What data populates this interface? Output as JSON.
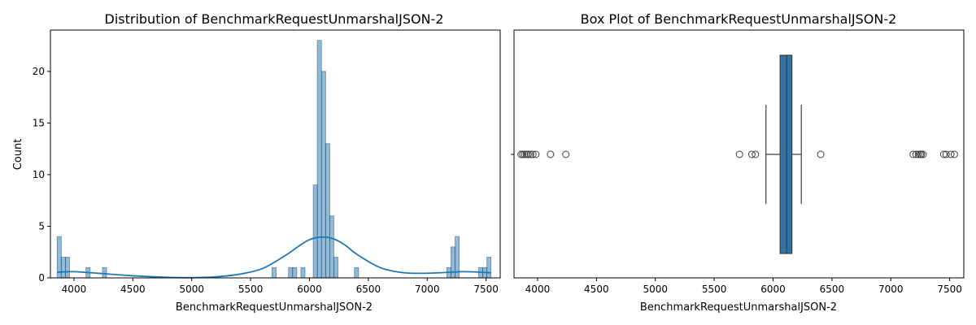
{
  "chart_data": [
    {
      "type": "bar",
      "subtype": "histogram-with-kde",
      "title": "Distribution of BenchmarkRequestUnmarshalJSON-2",
      "xlabel": "BenchmarkRequestUnmarshalJSON-2",
      "ylabel": "Count",
      "xlim": [
        3800,
        7620
      ],
      "ylim": [
        0,
        24
      ],
      "xticks": [
        4000,
        4500,
        5000,
        5500,
        6000,
        6500,
        7000,
        7500
      ],
      "yticks": [
        0,
        5,
        10,
        15,
        20
      ],
      "bar_color": "#1f77b4",
      "bins": [
        {
          "x0": 3857,
          "x1": 3892,
          "count": 4
        },
        {
          "x0": 3892,
          "x1": 3927,
          "count": 2
        },
        {
          "x0": 3927,
          "x1": 3962,
          "count": 2
        },
        {
          "x0": 4102,
          "x1": 4137,
          "count": 1
        },
        {
          "x0": 4242,
          "x1": 4277,
          "count": 1
        },
        {
          "x0": 5682,
          "x1": 5717,
          "count": 1
        },
        {
          "x0": 5822,
          "x1": 5857,
          "count": 1
        },
        {
          "x0": 5857,
          "x1": 5892,
          "count": 1
        },
        {
          "x0": 5927,
          "x1": 5962,
          "count": 1
        },
        {
          "x0": 6032,
          "x1": 6067,
          "count": 9
        },
        {
          "x0": 6067,
          "x1": 6102,
          "count": 23
        },
        {
          "x0": 6102,
          "x1": 6137,
          "count": 20
        },
        {
          "x0": 6137,
          "x1": 6172,
          "count": 13
        },
        {
          "x0": 6172,
          "x1": 6207,
          "count": 6
        },
        {
          "x0": 6207,
          "x1": 6242,
          "count": 2
        },
        {
          "x0": 6382,
          "x1": 6417,
          "count": 1
        },
        {
          "x0": 7167,
          "x1": 7202,
          "count": 1
        },
        {
          "x0": 7202,
          "x1": 7237,
          "count": 3
        },
        {
          "x0": 7237,
          "x1": 7272,
          "count": 4
        },
        {
          "x0": 7437,
          "x1": 7472,
          "count": 1
        },
        {
          "x0": 7472,
          "x1": 7507,
          "count": 1
        },
        {
          "x0": 7507,
          "x1": 7542,
          "count": 2
        }
      ],
      "kde": {
        "x": [
          3860,
          4000,
          4200,
          4500,
          4800,
          5000,
          5200,
          5400,
          5600,
          5800,
          5900,
          6000,
          6100,
          6200,
          6300,
          6400,
          6600,
          6800,
          7000,
          7200,
          7300,
          7400,
          7540
        ],
        "y": [
          0.55,
          0.6,
          0.45,
          0.2,
          0.05,
          0.02,
          0.1,
          0.35,
          0.9,
          2.2,
          3.0,
          3.7,
          3.95,
          3.8,
          3.2,
          2.3,
          1.0,
          0.5,
          0.45,
          0.55,
          0.6,
          0.58,
          0.5
        ]
      }
    },
    {
      "type": "box",
      "title": "Box Plot of BenchmarkRequestUnmarshalJSON-2",
      "xlabel": "BenchmarkRequestUnmarshalJSON-2",
      "xlim": [
        3800,
        7620
      ],
      "xticks": [
        4000,
        4500,
        5000,
        5500,
        6000,
        6500,
        7000,
        7500
      ],
      "box_color": "#3274a1",
      "whisker_low": 5940,
      "q1": 6060,
      "median": 6115,
      "q3": 6160,
      "whisker_high": 6240,
      "outliers": [
        3860,
        3875,
        3890,
        3905,
        3920,
        3940,
        3960,
        3985,
        4110,
        4240,
        5715,
        5820,
        5850,
        6405,
        7190,
        7215,
        7235,
        7250,
        7260,
        7275,
        7450,
        7470,
        7510,
        7540
      ]
    }
  ]
}
